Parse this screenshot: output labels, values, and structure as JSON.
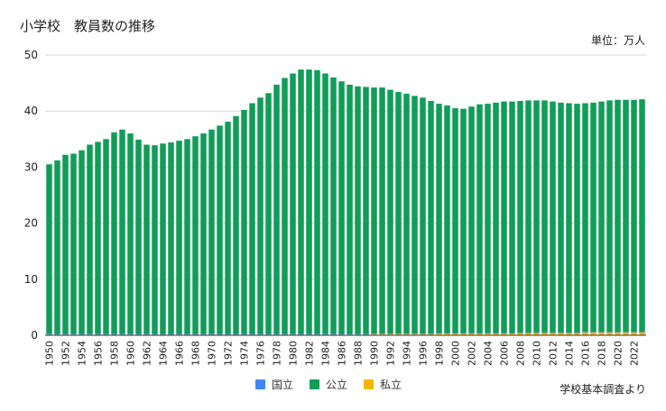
{
  "chart_data": {
    "type": "bar",
    "stacked": true,
    "title": "小学校　教員数の推移",
    "unit_label": "単位：万人",
    "source_note": "学校基本調査より",
    "ylim": [
      0,
      50
    ],
    "yticks": [
      0,
      10,
      20,
      30,
      40,
      50
    ],
    "grid": true,
    "legend_position": "bottom",
    "categories": [
      "1950",
      "1951",
      "1952",
      "1953",
      "1954",
      "1955",
      "1956",
      "1957",
      "1958",
      "1959",
      "1960",
      "1961",
      "1962",
      "1963",
      "1964",
      "1965",
      "1966",
      "1967",
      "1968",
      "1969",
      "1970",
      "1971",
      "1972",
      "1973",
      "1974",
      "1975",
      "1976",
      "1977",
      "1978",
      "1979",
      "1980",
      "1981",
      "1982",
      "1983",
      "1984",
      "1985",
      "1986",
      "1987",
      "1988",
      "1989",
      "1990",
      "1991",
      "1992",
      "1993",
      "1994",
      "1995",
      "1996",
      "1997",
      "1998",
      "1999",
      "2000",
      "2001",
      "2002",
      "2003",
      "2004",
      "2005",
      "2006",
      "2007",
      "2008",
      "2009",
      "2010",
      "2011",
      "2012",
      "2013",
      "2014",
      "2015",
      "2016",
      "2017",
      "2018",
      "2019",
      "2020",
      "2021",
      "2022",
      "2023"
    ],
    "xtick_labels": [
      "1950",
      "1952",
      "1954",
      "1956",
      "1958",
      "1960",
      "1962",
      "1964",
      "1966",
      "1968",
      "1970",
      "1972",
      "1974",
      "1976",
      "1978",
      "1980",
      "1982",
      "1984",
      "1986",
      "1988",
      "1990",
      "1992",
      "1994",
      "1996",
      "1998",
      "2000",
      "2002",
      "2004",
      "2006",
      "2008",
      "2010",
      "2012",
      "2014",
      "2016",
      "2018",
      "2020",
      "2022"
    ],
    "series": [
      {
        "name": "国立",
        "color": "#4285f4",
        "values": [
          0.1,
          0.1,
          0.1,
          0.1,
          0.1,
          0.1,
          0.1,
          0.1,
          0.1,
          0.1,
          0.1,
          0.1,
          0.1,
          0.1,
          0.1,
          0.1,
          0.1,
          0.1,
          0.1,
          0.1,
          0.1,
          0.1,
          0.1,
          0.1,
          0.1,
          0.1,
          0.1,
          0.1,
          0.1,
          0.1,
          0.1,
          0.1,
          0.1,
          0.1,
          0.1,
          0.1,
          0.1,
          0.1,
          0.1,
          0.1,
          0.1,
          0.1,
          0.1,
          0.1,
          0.1,
          0.1,
          0.1,
          0.1,
          0.1,
          0.1,
          0.1,
          0.1,
          0.1,
          0.1,
          0.1,
          0.1,
          0.1,
          0.1,
          0.1,
          0.1,
          0.1,
          0.1,
          0.1,
          0.1,
          0.1,
          0.1,
          0.1,
          0.1,
          0.1,
          0.1,
          0.1,
          0.1,
          0.1,
          0.1
        ]
      },
      {
        "name": "公立",
        "color": "#0f9d58",
        "values": [
          30.3,
          31.0,
          32.0,
          32.2,
          32.8,
          33.8,
          34.3,
          34.8,
          36.0,
          36.5,
          35.8,
          34.7,
          33.8,
          33.7,
          34.0,
          34.2,
          34.5,
          34.8,
          35.3,
          35.8,
          36.5,
          37.2,
          37.9,
          38.9,
          40.0,
          41.2,
          42.2,
          43.0,
          44.5,
          45.7,
          46.5,
          47.2,
          47.2,
          47.1,
          46.5,
          45.8,
          45.1,
          44.5,
          44.2,
          44.1,
          43.9,
          43.9,
          43.5,
          43.1,
          42.8,
          42.4,
          42.1,
          41.5,
          40.9,
          40.6,
          40.1,
          40.0,
          40.4,
          40.8,
          40.9,
          41.1,
          41.3,
          41.3,
          41.3,
          41.4,
          41.4,
          41.4,
          41.2,
          41.0,
          40.9,
          40.8,
          40.8,
          40.9,
          41.1,
          41.3,
          41.4,
          41.4,
          41.4,
          41.5
        ]
      },
      {
        "name": "私立",
        "color": "#f4b400",
        "values": [
          0.1,
          0.1,
          0.1,
          0.1,
          0.1,
          0.1,
          0.1,
          0.1,
          0.1,
          0.1,
          0.1,
          0.1,
          0.1,
          0.1,
          0.1,
          0.1,
          0.1,
          0.1,
          0.1,
          0.1,
          0.1,
          0.1,
          0.1,
          0.1,
          0.1,
          0.1,
          0.1,
          0.1,
          0.1,
          0.1,
          0.1,
          0.1,
          0.1,
          0.1,
          0.1,
          0.1,
          0.1,
          0.1,
          0.1,
          0.1,
          0.2,
          0.2,
          0.2,
          0.2,
          0.2,
          0.2,
          0.2,
          0.2,
          0.3,
          0.3,
          0.3,
          0.3,
          0.3,
          0.3,
          0.3,
          0.3,
          0.3,
          0.3,
          0.4,
          0.4,
          0.4,
          0.4,
          0.4,
          0.4,
          0.4,
          0.4,
          0.5,
          0.5,
          0.5,
          0.5,
          0.5,
          0.5,
          0.5,
          0.5
        ]
      }
    ]
  }
}
